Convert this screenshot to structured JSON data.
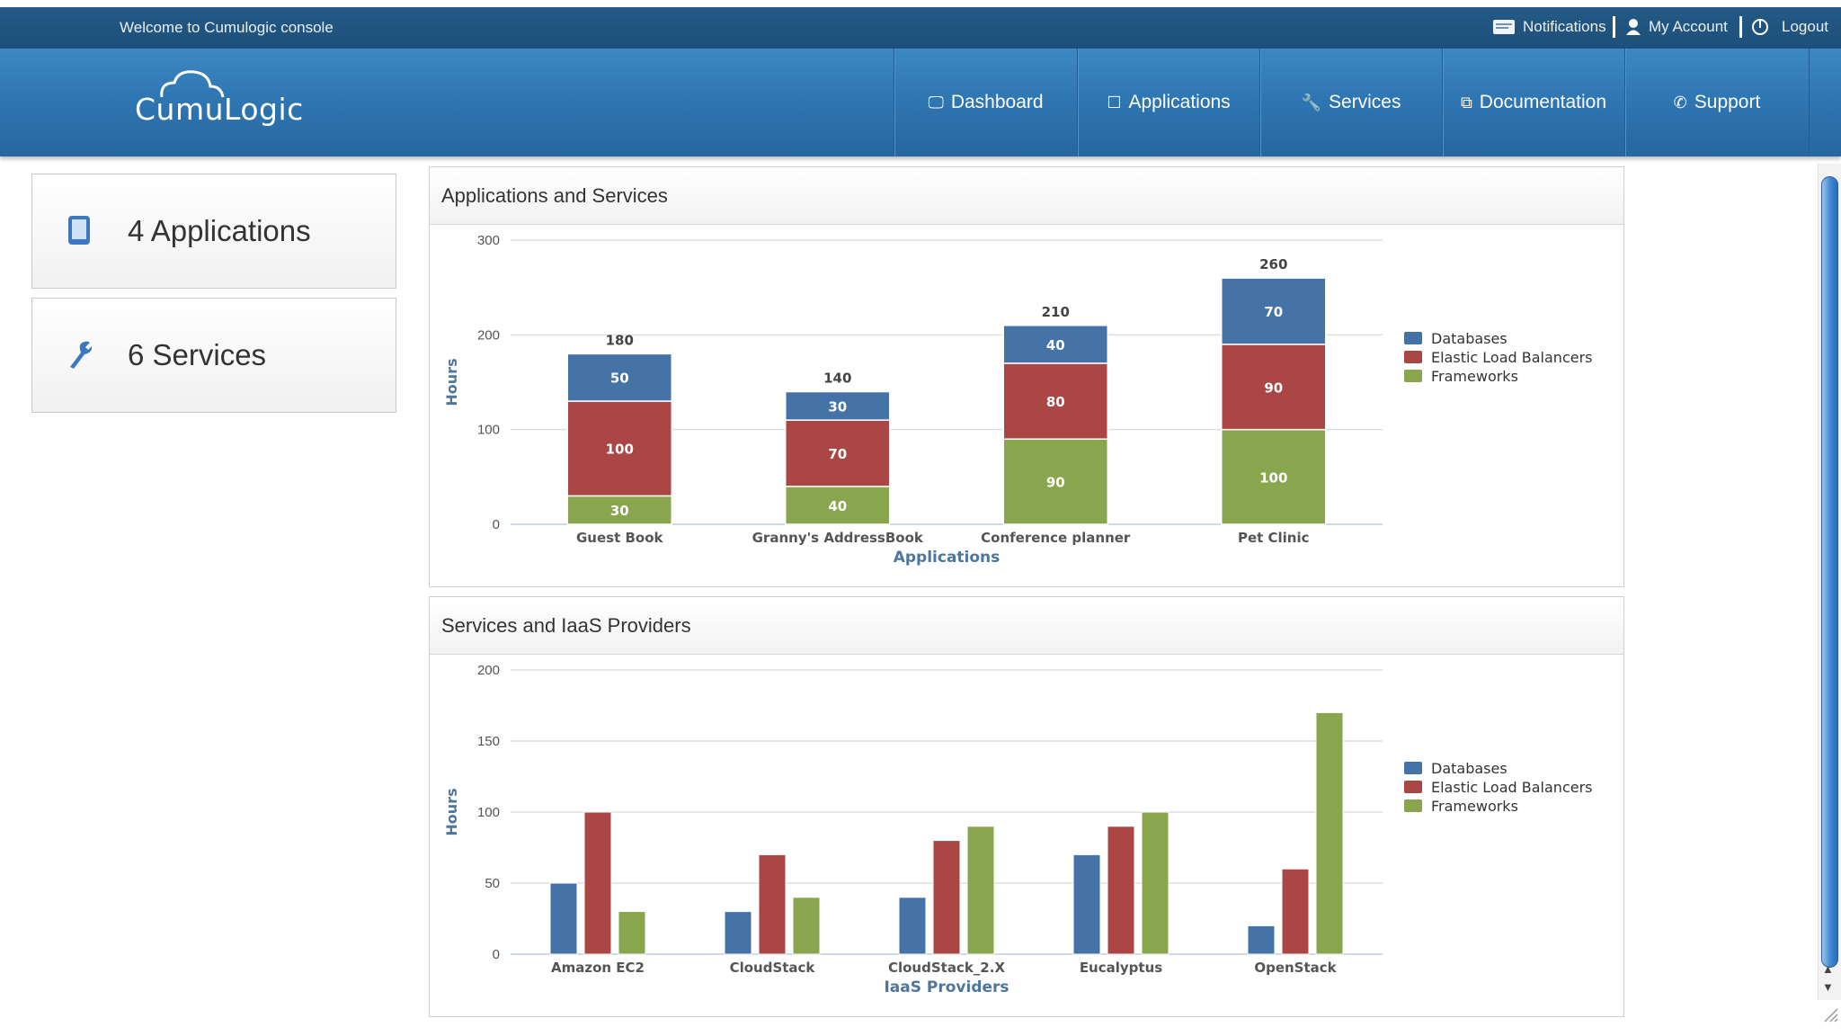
{
  "topbar": {
    "welcome": "Welcome to Cumulogic console",
    "links": [
      {
        "label": "Notifications",
        "icon": "notifications-icon"
      },
      {
        "label": "My Account",
        "icon": "user-icon"
      },
      {
        "label": "Logout",
        "icon": "power-icon"
      }
    ]
  },
  "logo": {
    "text": "CumuLogic"
  },
  "nav": {
    "tabs": [
      {
        "label": "Dashboard",
        "icon": "monitor-icon",
        "glyph": "🖵"
      },
      {
        "label": "Applications",
        "icon": "window-icon",
        "glyph": "☐"
      },
      {
        "label": "Services",
        "icon": "wrench-icon",
        "glyph": "🔧"
      },
      {
        "label": "Documentation",
        "icon": "documents-icon",
        "glyph": "⧉"
      },
      {
        "label": "Support",
        "icon": "phone-icon",
        "glyph": "✆"
      }
    ]
  },
  "summary": {
    "applications": "4 Applications",
    "services": "6 Services"
  },
  "colors": {
    "databases": "#4572a7",
    "elb": "#aa4643",
    "frameworks": "#89a54e",
    "axis_title": "#4d759e"
  },
  "panels": {
    "apps_title": "Applications and Services",
    "iaas_title": "Services and IaaS Providers"
  },
  "chart_data": [
    {
      "type": "bar",
      "stacked": true,
      "title": "Applications and Services",
      "xlabel": "Applications",
      "ylabel": "Hours",
      "ylim": [
        0,
        300
      ],
      "yticks": [
        0,
        100,
        200,
        300
      ],
      "categories": [
        "Guest Book",
        "Granny's AddressBook",
        "Conference planner",
        "Pet Clinic"
      ],
      "series": [
        {
          "name": "Frameworks",
          "values": [
            30,
            40,
            90,
            100
          ]
        },
        {
          "name": "Elastic Load Balancers",
          "values": [
            100,
            70,
            80,
            90
          ]
        },
        {
          "name": "Databases",
          "values": [
            50,
            30,
            40,
            70
          ]
        }
      ],
      "totals": [
        180,
        140,
        210,
        260
      ],
      "legend": {
        "position": "right",
        "items": [
          "Databases",
          "Elastic Load Balancers",
          "Frameworks"
        ]
      },
      "grid": true
    },
    {
      "type": "bar",
      "stacked": false,
      "title": "Services and IaaS Providers",
      "xlabel": "IaaS Providers",
      "ylabel": "Hours",
      "ylim": [
        0,
        200
      ],
      "yticks": [
        0,
        50,
        100,
        150,
        200
      ],
      "categories": [
        "Amazon EC2",
        "CloudStack",
        "CloudStack_2.X",
        "Eucalyptus",
        "OpenStack"
      ],
      "series": [
        {
          "name": "Databases",
          "values": [
            50,
            30,
            40,
            70,
            20
          ]
        },
        {
          "name": "Elastic Load Balancers",
          "values": [
            100,
            70,
            80,
            90,
            60
          ]
        },
        {
          "name": "Frameworks",
          "values": [
            30,
            40,
            90,
            100,
            170
          ]
        }
      ],
      "legend": {
        "position": "right",
        "items": [
          "Databases",
          "Elastic Load Balancers",
          "Frameworks"
        ]
      },
      "grid": true
    }
  ]
}
